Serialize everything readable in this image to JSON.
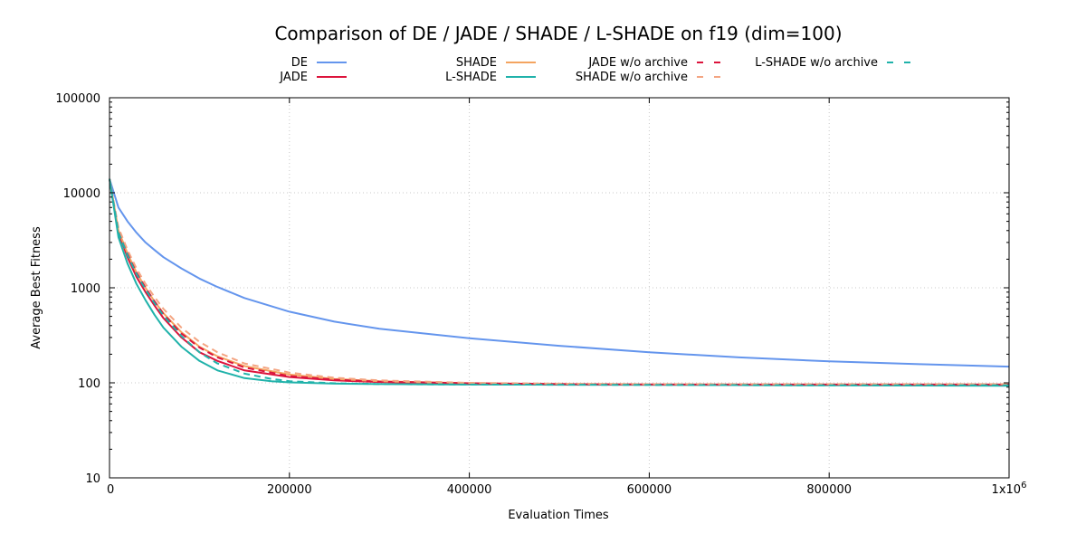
{
  "chart_data": {
    "type": "line",
    "title": "Comparison of DE / JADE / SHADE / L-SHADE on f19 (dim=100)",
    "xlabel": "Evaluation Times",
    "ylabel": "Average Best Fitness",
    "xlim": [
      0,
      1000000
    ],
    "ylim": [
      10,
      100000
    ],
    "yscale": "log",
    "grid": true,
    "legend_position": "top",
    "x_ticks": [
      {
        "value": 0,
        "label": "0"
      },
      {
        "value": 200000,
        "label": "200000"
      },
      {
        "value": 400000,
        "label": "400000"
      },
      {
        "value": 600000,
        "label": "600000"
      },
      {
        "value": 800000,
        "label": "800000"
      },
      {
        "value": 1000000,
        "label": "1x10",
        "sup": "6"
      }
    ],
    "y_ticks": [
      {
        "value": 10,
        "label": "10"
      },
      {
        "value": 100,
        "label": "100"
      },
      {
        "value": 1000,
        "label": "1000"
      },
      {
        "value": 10000,
        "label": "10000"
      },
      {
        "value": 100000,
        "label": "100000"
      }
    ],
    "series": [
      {
        "name": "DE",
        "color": "#6495ed",
        "dash": "solid",
        "x": [
          0,
          10000,
          20000,
          30000,
          40000,
          50000,
          60000,
          80000,
          100000,
          120000,
          150000,
          200000,
          250000,
          300000,
          400000,
          500000,
          600000,
          700000,
          800000,
          900000,
          1000000
        ],
        "y": [
          14000,
          7000,
          5000,
          3800,
          3000,
          2500,
          2100,
          1600,
          1250,
          1020,
          780,
          560,
          440,
          370,
          295,
          245,
          210,
          185,
          168,
          157,
          148
        ]
      },
      {
        "name": "JADE",
        "color": "#dc143c",
        "dash": "solid",
        "x": [
          0,
          10000,
          20000,
          30000,
          40000,
          50000,
          60000,
          80000,
          100000,
          120000,
          150000,
          200000,
          250000,
          300000,
          400000,
          500000,
          600000,
          800000,
          1000000
        ],
        "y": [
          14000,
          3800,
          2100,
          1300,
          900,
          650,
          480,
          300,
          210,
          170,
          135,
          115,
          106,
          102,
          98,
          97,
          96,
          95,
          95
        ]
      },
      {
        "name": "SHADE",
        "color": "#f4a460",
        "dash": "solid",
        "x": [
          0,
          10000,
          20000,
          30000,
          40000,
          50000,
          60000,
          80000,
          100000,
          120000,
          150000,
          200000,
          250000,
          300000,
          400000,
          500000,
          600000,
          800000,
          1000000
        ],
        "y": [
          14000,
          4000,
          2300,
          1450,
          1000,
          720,
          540,
          340,
          240,
          190,
          150,
          122,
          110,
          104,
          99,
          97,
          96,
          96,
          96
        ]
      },
      {
        "name": "L-SHADE",
        "color": "#20b2aa",
        "dash": "solid",
        "x": [
          0,
          10000,
          20000,
          30000,
          40000,
          50000,
          60000,
          80000,
          100000,
          120000,
          150000,
          180000,
          200000,
          250000,
          300000,
          400000,
          600000,
          800000,
          1000000
        ],
        "y": [
          14000,
          3400,
          1800,
          1100,
          740,
          520,
          380,
          240,
          170,
          135,
          112,
          104,
          101,
          98,
          97,
          96,
          95,
          94,
          93
        ]
      },
      {
        "name": "JADE w/o archive",
        "color": "#dc143c",
        "dash": "dashed",
        "x": [
          0,
          10000,
          20000,
          30000,
          40000,
          50000,
          60000,
          80000,
          100000,
          120000,
          150000,
          200000,
          250000,
          300000,
          400000,
          500000,
          600000,
          800000,
          1000000
        ],
        "y": [
          14000,
          4000,
          2300,
          1450,
          1000,
          720,
          530,
          330,
          235,
          185,
          145,
          118,
          108,
          103,
          99,
          97,
          96,
          96,
          96
        ]
      },
      {
        "name": "SHADE w/o archive",
        "color": "#f4a582",
        "dash": "dashed",
        "x": [
          0,
          10000,
          20000,
          30000,
          40000,
          50000,
          60000,
          80000,
          100000,
          120000,
          150000,
          200000,
          250000,
          300000,
          400000,
          500000,
          600000,
          800000,
          1000000
        ],
        "y": [
          14000,
          4300,
          2500,
          1600,
          1100,
          800,
          600,
          380,
          270,
          210,
          160,
          128,
          113,
          106,
          100,
          98,
          97,
          97,
          97
        ]
      },
      {
        "name": "L-SHADE w/o archive",
        "color": "#20b2aa",
        "dash": "dashed",
        "x": [
          0,
          10000,
          20000,
          30000,
          40000,
          50000,
          60000,
          80000,
          100000,
          120000,
          150000,
          180000,
          200000,
          250000,
          300000,
          400000,
          600000,
          800000,
          1000000
        ],
        "y": [
          14000,
          3800,
          2200,
          1400,
          960,
          690,
          510,
          310,
          210,
          160,
          125,
          110,
          104,
          99,
          97,
          96,
          95,
          94,
          94
        ]
      }
    ]
  }
}
